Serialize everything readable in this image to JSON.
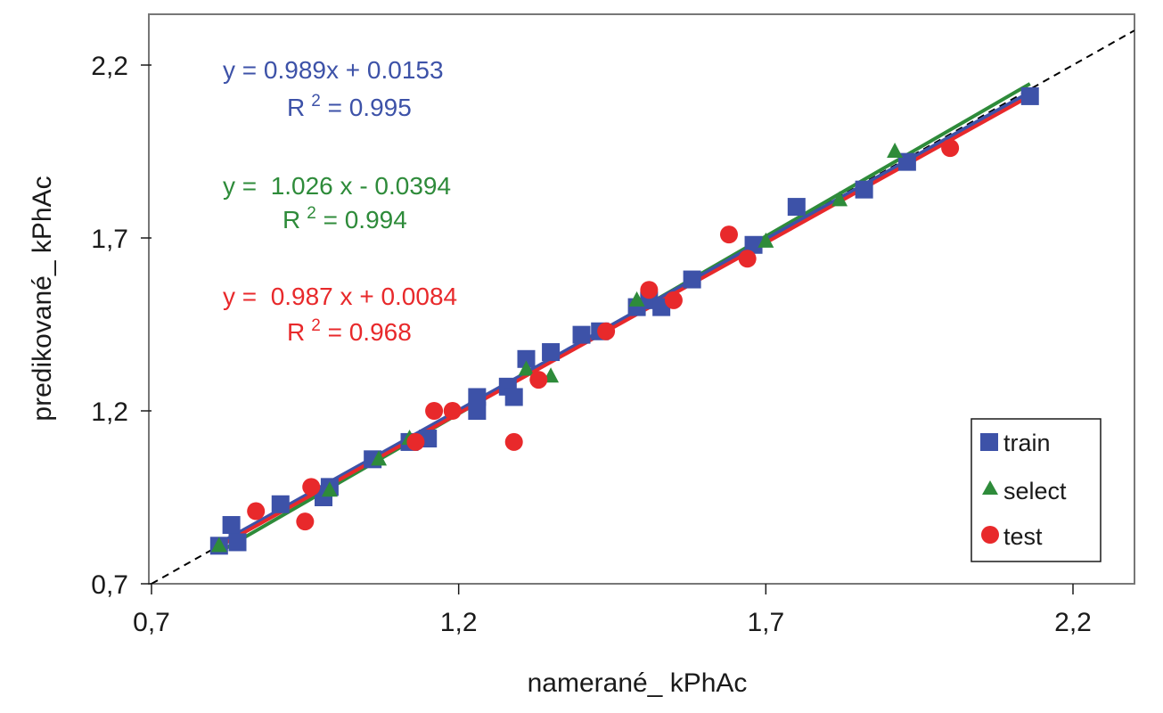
{
  "chart_data": {
    "type": "scatter",
    "title": "",
    "xlabel": "namerané_ kPhAc",
    "ylabel": "predikované_ kPhAc",
    "xlim": [
      0.7,
      2.3
    ],
    "ylim": [
      0.7,
      2.3
    ],
    "xticks": [
      0.7,
      1.2,
      1.7,
      2.2
    ],
    "yticks": [
      0.7,
      1.2,
      1.7,
      2.2
    ],
    "xtick_labels": [
      "0,7",
      "1,2",
      "1,7",
      "2,2"
    ],
    "ytick_labels": [
      "0,7",
      "1,2",
      "1,7",
      "2,2"
    ],
    "grid": false,
    "legend_position": "bottom-right",
    "identity_line": {
      "x": [
        0.7,
        2.3
      ],
      "y": [
        0.7,
        2.3
      ],
      "style": "dashed",
      "color": "#000000"
    },
    "series": [
      {
        "name": "train",
        "marker": "square",
        "color": "#3d52a8",
        "fit": {
          "slope": 0.989,
          "intercept": 0.0153,
          "x_range": [
            0.81,
            2.13
          ]
        },
        "equation": "y = 0.989x + 0.0153",
        "r2_label": "R",
        "r2_sup": "2",
        "r2_value": " = 0.995",
        "points": [
          [
            0.81,
            0.81
          ],
          [
            0.83,
            0.87
          ],
          [
            0.84,
            0.82
          ],
          [
            0.91,
            0.93
          ],
          [
            0.98,
            0.95
          ],
          [
            0.99,
            0.98
          ],
          [
            1.06,
            1.06
          ],
          [
            1.12,
            1.11
          ],
          [
            1.15,
            1.12
          ],
          [
            1.23,
            1.24
          ],
          [
            1.23,
            1.2
          ],
          [
            1.28,
            1.27
          ],
          [
            1.29,
            1.24
          ],
          [
            1.31,
            1.35
          ],
          [
            1.35,
            1.37
          ],
          [
            1.4,
            1.42
          ],
          [
            1.43,
            1.43
          ],
          [
            1.49,
            1.5
          ],
          [
            1.51,
            1.52
          ],
          [
            1.53,
            1.5
          ],
          [
            1.58,
            1.58
          ],
          [
            1.68,
            1.68
          ],
          [
            1.75,
            1.79
          ],
          [
            1.86,
            1.84
          ],
          [
            1.93,
            1.92
          ],
          [
            2.13,
            2.11
          ]
        ]
      },
      {
        "name": "select",
        "marker": "triangle",
        "color": "#2e8b3a",
        "fit": {
          "slope": 1.026,
          "intercept": -0.0394,
          "x_range": [
            0.81,
            2.13
          ]
        },
        "equation": "y =  1.026 x - 0.0394",
        "r2_label": "R",
        "r2_sup": "2",
        "r2_value": " = 0.994",
        "points": [
          [
            0.81,
            0.81
          ],
          [
            0.99,
            0.97
          ],
          [
            1.07,
            1.06
          ],
          [
            1.12,
            1.12
          ],
          [
            1.31,
            1.32
          ],
          [
            1.35,
            1.3
          ],
          [
            1.49,
            1.52
          ],
          [
            1.7,
            1.69
          ],
          [
            1.82,
            1.81
          ],
          [
            1.91,
            1.95
          ]
        ]
      },
      {
        "name": "test",
        "marker": "circle",
        "color": "#e8292b",
        "fit": {
          "slope": 0.987,
          "intercept": 0.0084,
          "x_range": [
            0.81,
            2.13
          ]
        },
        "equation": "y =  0.987 x + 0.0084",
        "r2_label": "R",
        "r2_sup": "2",
        "r2_value": " = 0.968",
        "points": [
          [
            0.87,
            0.91
          ],
          [
            0.95,
            0.88
          ],
          [
            0.96,
            0.98
          ],
          [
            1.13,
            1.11
          ],
          [
            1.16,
            1.2
          ],
          [
            1.19,
            1.2
          ],
          [
            1.29,
            1.11
          ],
          [
            1.33,
            1.29
          ],
          [
            1.44,
            1.43
          ],
          [
            1.51,
            1.55
          ],
          [
            1.55,
            1.52
          ],
          [
            1.64,
            1.71
          ],
          [
            1.67,
            1.64
          ],
          [
            2.0,
            1.96
          ]
        ]
      }
    ]
  }
}
